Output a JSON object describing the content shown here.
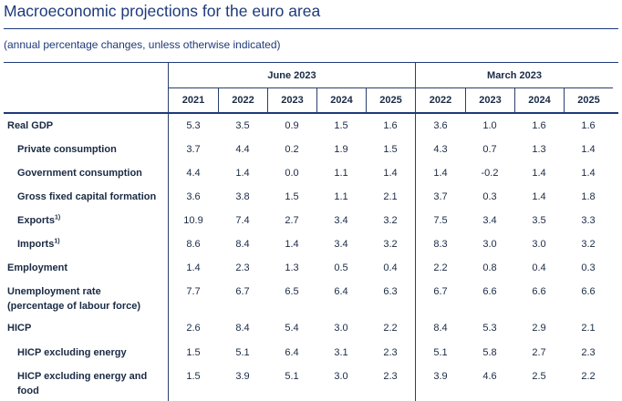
{
  "title": "Macroeconomic projections for the euro area",
  "subtitle": "(annual percentage changes, unless otherwise indicated)",
  "groups": [
    {
      "label": "June 2023",
      "years": [
        "2021",
        "2022",
        "2023",
        "2024",
        "2025"
      ]
    },
    {
      "label": "March 2023",
      "years": [
        "2022",
        "2023",
        "2024",
        "2025"
      ]
    }
  ],
  "rows": [
    {
      "label": "Real GDP",
      "indent": false,
      "june": [
        "5.3",
        "3.5",
        "0.9",
        "1.5",
        "1.6"
      ],
      "march": [
        "3.6",
        "1.0",
        "1.6",
        "1.6"
      ]
    },
    {
      "label": "Private consumption",
      "indent": true,
      "june": [
        "3.7",
        "4.4",
        "0.2",
        "1.9",
        "1.5"
      ],
      "march": [
        "4.3",
        "0.7",
        "1.3",
        "1.4"
      ]
    },
    {
      "label": "Government consumption",
      "indent": true,
      "june": [
        "4.4",
        "1.4",
        "0.0",
        "1.1",
        "1.4"
      ],
      "march": [
        "1.4",
        "-0.2",
        "1.4",
        "1.4"
      ]
    },
    {
      "label": "Gross fixed capital formation",
      "indent": true,
      "june": [
        "3.6",
        "3.8",
        "1.5",
        "1.1",
        "2.1"
      ],
      "march": [
        "3.7",
        "0.3",
        "1.4",
        "1.8"
      ]
    },
    {
      "label": "Exports",
      "footnote": "1)",
      "indent": true,
      "june": [
        "10.9",
        "7.4",
        "2.7",
        "3.4",
        "3.2"
      ],
      "march": [
        "7.5",
        "3.4",
        "3.5",
        "3.3"
      ]
    },
    {
      "label": "Imports",
      "footnote": "1)",
      "indent": true,
      "june": [
        "8.6",
        "8.4",
        "1.4",
        "3.4",
        "3.2"
      ],
      "march": [
        "8.3",
        "3.0",
        "3.0",
        "3.2"
      ]
    },
    {
      "label": "Employment",
      "indent": false,
      "june": [
        "1.4",
        "2.3",
        "1.3",
        "0.5",
        "0.4"
      ],
      "march": [
        "2.2",
        "0.8",
        "0.4",
        "0.3"
      ]
    },
    {
      "label": "Unemployment rate",
      "label2": "(percentage of labour force)",
      "indent": false,
      "june": [
        "7.7",
        "6.7",
        "6.5",
        "6.4",
        "6.3"
      ],
      "march": [
        "6.7",
        "6.6",
        "6.6",
        "6.6"
      ]
    },
    {
      "label": "HICP",
      "indent": false,
      "june": [
        "2.6",
        "8.4",
        "5.4",
        "3.0",
        "2.2"
      ],
      "march": [
        "8.4",
        "5.3",
        "2.9",
        "2.1"
      ]
    },
    {
      "label": "HICP excluding energy",
      "indent": true,
      "june": [
        "1.5",
        "5.1",
        "6.4",
        "3.1",
        "2.3"
      ],
      "march": [
        "5.1",
        "5.8",
        "2.7",
        "2.3"
      ]
    },
    {
      "label": "HICP excluding energy and",
      "label2": "food",
      "indent": true,
      "june": [
        "1.5",
        "3.9",
        "5.1",
        "3.0",
        "2.3"
      ],
      "march": [
        "3.9",
        "4.6",
        "2.5",
        "2.2"
      ]
    }
  ]
}
